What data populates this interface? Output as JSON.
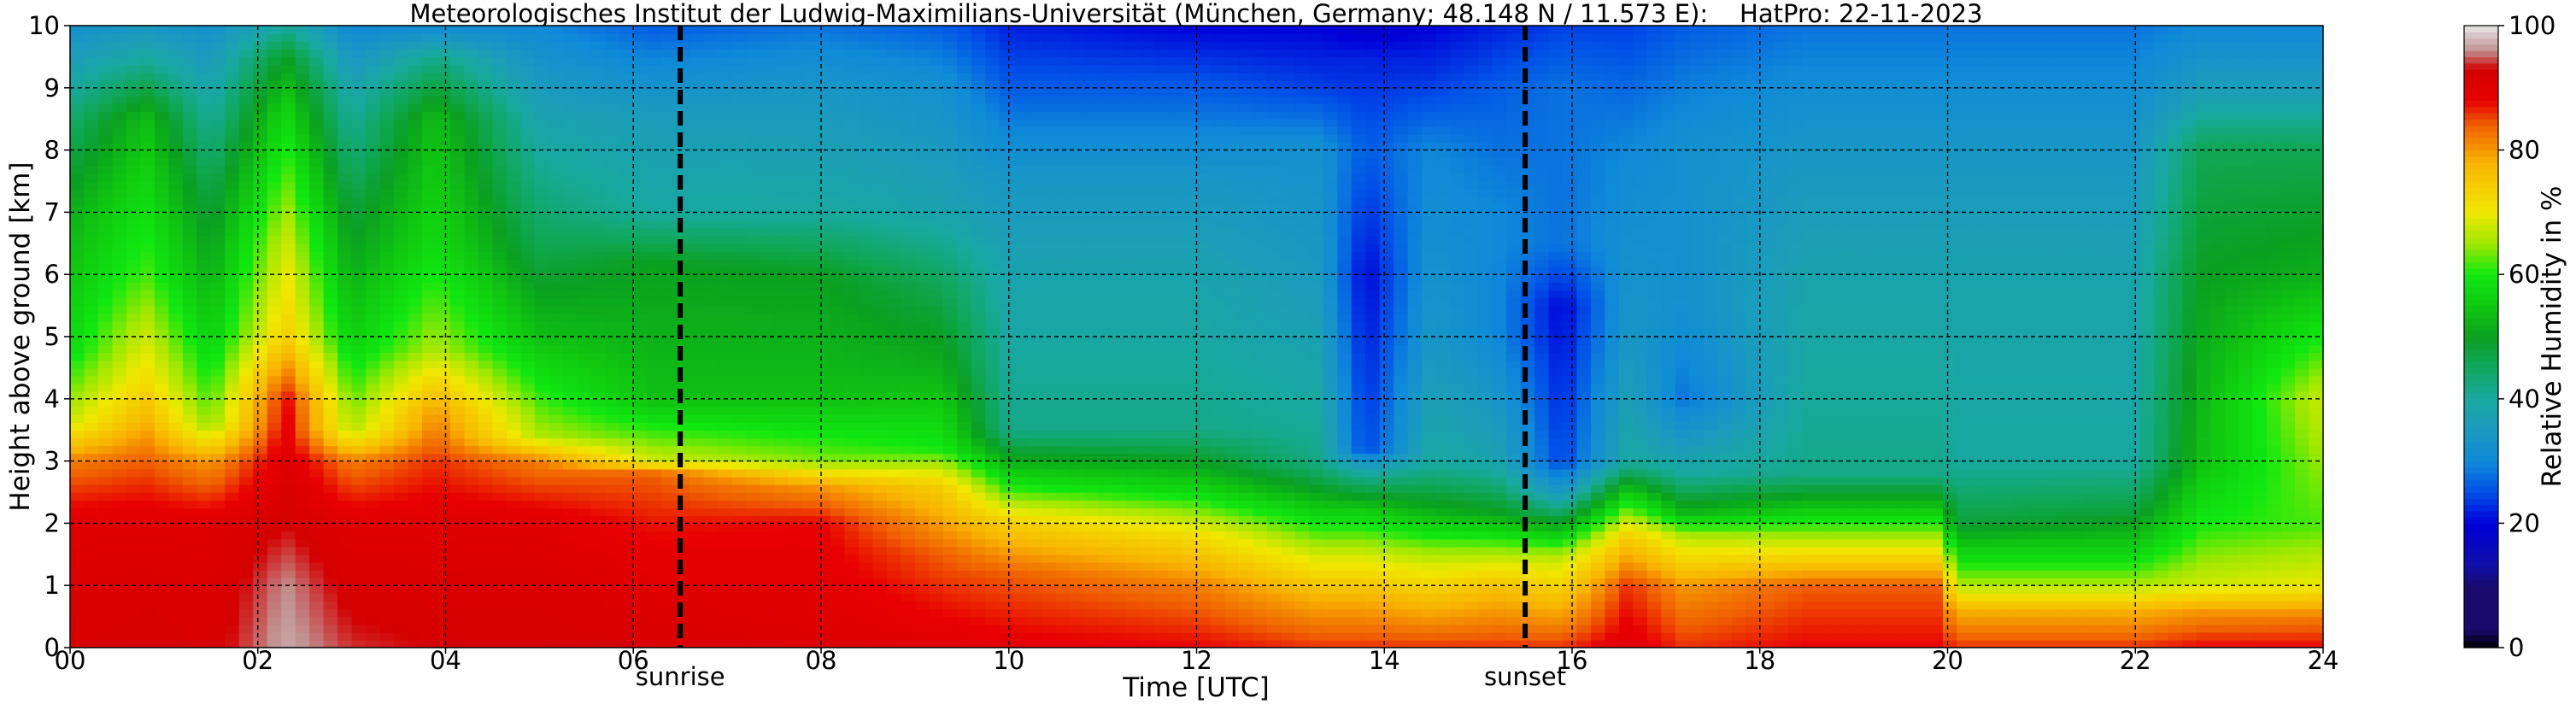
{
  "chart_data": {
    "type": "heatmap",
    "title": "Meteorologisches Institut der Ludwig-Maximilians-Universität (München, Germany; 48.148 N / 11.573 E):    HatPro: 22-11-2023",
    "xlabel": "Time [UTC]",
    "ylabel": "Height above ground [km]",
    "colorbar_label": "Relative Humidity in %",
    "xlim": [
      0,
      24
    ],
    "ylim": [
      0,
      10
    ],
    "clim": [
      0,
      100
    ],
    "grid": true,
    "x_ticks": [
      {
        "value": 0,
        "label": "00"
      },
      {
        "value": 2,
        "label": "02"
      },
      {
        "value": 4,
        "label": "04"
      },
      {
        "value": 6,
        "label": "06"
      },
      {
        "value": 8,
        "label": "08"
      },
      {
        "value": 10,
        "label": "10"
      },
      {
        "value": 12,
        "label": "12"
      },
      {
        "value": 14,
        "label": "14"
      },
      {
        "value": 16,
        "label": "16"
      },
      {
        "value": 18,
        "label": "18"
      },
      {
        "value": 20,
        "label": "20"
      },
      {
        "value": 22,
        "label": "22"
      },
      {
        "value": 24,
        "label": "24"
      }
    ],
    "y_ticks": [
      {
        "value": 0,
        "label": "0"
      },
      {
        "value": 1,
        "label": "1"
      },
      {
        "value": 2,
        "label": "2"
      },
      {
        "value": 3,
        "label": "3"
      },
      {
        "value": 4,
        "label": "4"
      },
      {
        "value": 5,
        "label": "5"
      },
      {
        "value": 6,
        "label": "6"
      },
      {
        "value": 7,
        "label": "7"
      },
      {
        "value": 8,
        "label": "8"
      },
      {
        "value": 9,
        "label": "9"
      },
      {
        "value": 10,
        "label": "10"
      }
    ],
    "colorbar_ticks": [
      {
        "value": 0,
        "label": "0"
      },
      {
        "value": 20,
        "label": "20"
      },
      {
        "value": 40,
        "label": "40"
      },
      {
        "value": 60,
        "label": "60"
      },
      {
        "value": 80,
        "label": "80"
      },
      {
        "value": 100,
        "label": "100"
      }
    ],
    "events": [
      {
        "name": "sunrise",
        "time": 6.5
      },
      {
        "name": "sunset",
        "time": 15.5
      }
    ],
    "colormap": [
      {
        "v": 0,
        "c": "#000000"
      },
      {
        "v": 3,
        "c": "#1a0a6e"
      },
      {
        "v": 10,
        "c": "#1a0a6e"
      },
      {
        "v": 13,
        "c": "#1010a8"
      },
      {
        "v": 20,
        "c": "#0000d8"
      },
      {
        "v": 25,
        "c": "#0050e8"
      },
      {
        "v": 30,
        "c": "#0f8ad8"
      },
      {
        "v": 35,
        "c": "#1a9ac0"
      },
      {
        "v": 40,
        "c": "#19a8a0"
      },
      {
        "v": 45,
        "c": "#10a860"
      },
      {
        "v": 50,
        "c": "#0aa020"
      },
      {
        "v": 55,
        "c": "#10c810"
      },
      {
        "v": 60,
        "c": "#10e810"
      },
      {
        "v": 65,
        "c": "#a0e800"
      },
      {
        "v": 70,
        "c": "#f0e800"
      },
      {
        "v": 78,
        "c": "#f8b400"
      },
      {
        "v": 84,
        "c": "#f06000"
      },
      {
        "v": 88,
        "c": "#e80000"
      },
      {
        "v": 93,
        "c": "#d40000"
      },
      {
        "v": 96,
        "c": "#c09090"
      },
      {
        "v": 100,
        "c": "#e6e6e6"
      }
    ],
    "rh_columns": [
      {
        "t": 0.0,
        "levels": [
          [
            0,
            92
          ],
          [
            2.0,
            90
          ],
          [
            3.0,
            82
          ],
          [
            3.6,
            68
          ],
          [
            4.8,
            58
          ],
          [
            7.0,
            52
          ],
          [
            8.5,
            44
          ],
          [
            9.5,
            36
          ],
          [
            10,
            32
          ]
        ]
      },
      {
        "t": 0.8,
        "levels": [
          [
            0,
            93
          ],
          [
            2.0,
            90
          ],
          [
            3.0,
            84
          ],
          [
            4.3,
            72
          ],
          [
            6.0,
            62
          ],
          [
            8.5,
            54
          ],
          [
            9.5,
            40
          ],
          [
            10,
            34
          ]
        ]
      },
      {
        "t": 1.5,
        "levels": [
          [
            0,
            92
          ],
          [
            2.0,
            90
          ],
          [
            3.0,
            80
          ],
          [
            3.6,
            64
          ],
          [
            5.0,
            56
          ],
          [
            7.5,
            46
          ],
          [
            9.0,
            38
          ],
          [
            10,
            32
          ]
        ]
      },
      {
        "t": 2.3,
        "levels": [
          [
            0,
            97
          ],
          [
            1.0,
            96
          ],
          [
            2.0,
            93
          ],
          [
            4.0,
            88
          ],
          [
            5.0,
            74
          ],
          [
            6.5,
            68
          ],
          [
            8.5,
            58
          ],
          [
            9.5,
            50
          ],
          [
            10,
            40
          ]
        ]
      },
      {
        "t": 3.0,
        "levels": [
          [
            0,
            94
          ],
          [
            2.0,
            90
          ],
          [
            3.0,
            82
          ],
          [
            3.5,
            66
          ],
          [
            5.0,
            56
          ],
          [
            7.0,
            48
          ],
          [
            9.0,
            38
          ],
          [
            10,
            30
          ]
        ]
      },
      {
        "t": 3.9,
        "levels": [
          [
            0,
            93
          ],
          [
            2.0,
            90
          ],
          [
            3.0,
            86
          ],
          [
            3.8,
            80
          ],
          [
            4.8,
            66
          ],
          [
            6.5,
            58
          ],
          [
            8.5,
            54
          ],
          [
            9.5,
            42
          ],
          [
            10,
            30
          ]
        ]
      },
      {
        "t": 5.0,
        "levels": [
          [
            0,
            93
          ],
          [
            2.0,
            90
          ],
          [
            3.0,
            82
          ],
          [
            3.4,
            66
          ],
          [
            5.0,
            54
          ],
          [
            6.5,
            46
          ],
          [
            8.5,
            38
          ],
          [
            10,
            30
          ]
        ]
      },
      {
        "t": 6.2,
        "levels": [
          [
            0,
            92
          ],
          [
            1.5,
            89
          ],
          [
            2.8,
            84
          ],
          [
            3.0,
            68
          ],
          [
            4.0,
            54
          ],
          [
            6.2,
            50
          ],
          [
            7.0,
            40
          ],
          [
            8.5,
            36
          ],
          [
            10,
            26
          ]
        ]
      },
      {
        "t": 8.0,
        "levels": [
          [
            0,
            91
          ],
          [
            2.0,
            88
          ],
          [
            2.6,
            80
          ],
          [
            3.0,
            64
          ],
          [
            4.0,
            54
          ],
          [
            6.0,
            50
          ],
          [
            7.0,
            40
          ],
          [
            9.0,
            34
          ],
          [
            10,
            28
          ]
        ]
      },
      {
        "t": 9.3,
        "levels": [
          [
            0,
            90
          ],
          [
            1.5,
            84
          ],
          [
            2.6,
            74
          ],
          [
            3.2,
            60
          ],
          [
            4.5,
            52
          ],
          [
            5.8,
            46
          ],
          [
            7.0,
            38
          ],
          [
            9.0,
            32
          ],
          [
            10,
            26
          ]
        ]
      },
      {
        "t": 10.0,
        "levels": [
          [
            0,
            89
          ],
          [
            1.2,
            84
          ],
          [
            2.0,
            74
          ],
          [
            2.6,
            60
          ],
          [
            3.5,
            42
          ],
          [
            6.0,
            38
          ],
          [
            7.5,
            34
          ],
          [
            9.0,
            26
          ],
          [
            10,
            22
          ]
        ]
      },
      {
        "t": 12.0,
        "levels": [
          [
            0,
            88
          ],
          [
            1.0,
            82
          ],
          [
            1.8,
            72
          ],
          [
            2.5,
            58
          ],
          [
            3.5,
            42
          ],
          [
            6.0,
            38
          ],
          [
            7.5,
            34
          ],
          [
            9.0,
            26
          ],
          [
            10,
            20
          ]
        ]
      },
      {
        "t": 13.3,
        "levels": [
          [
            0,
            86
          ],
          [
            0.8,
            78
          ],
          [
            1.5,
            68
          ],
          [
            2.2,
            56
          ],
          [
            3.0,
            42
          ],
          [
            5.5,
            36
          ],
          [
            8.0,
            32
          ],
          [
            9.0,
            24
          ],
          [
            10,
            20
          ]
        ]
      },
      {
        "t": 13.8,
        "levels": [
          [
            0,
            86
          ],
          [
            0.8,
            78
          ],
          [
            1.5,
            68
          ],
          [
            2.2,
            56
          ],
          [
            2.8,
            40
          ],
          [
            3.2,
            24
          ],
          [
            6.0,
            20
          ],
          [
            8.0,
            26
          ],
          [
            9.5,
            22
          ],
          [
            10,
            18
          ]
        ]
      },
      {
        "t": 14.5,
        "levels": [
          [
            0,
            86
          ],
          [
            0.8,
            76
          ],
          [
            1.5,
            66
          ],
          [
            2.2,
            52
          ],
          [
            3.0,
            40
          ],
          [
            5.0,
            34
          ],
          [
            8.0,
            30
          ],
          [
            9.0,
            24
          ],
          [
            10,
            20
          ]
        ]
      },
      {
        "t": 15.2,
        "levels": [
          [
            0,
            86
          ],
          [
            1.0,
            76
          ],
          [
            1.6,
            64
          ],
          [
            2.2,
            50
          ],
          [
            3.0,
            38
          ],
          [
            5.0,
            30
          ],
          [
            7.0,
            30
          ],
          [
            9.0,
            26
          ],
          [
            10,
            22
          ]
        ]
      },
      {
        "t": 15.9,
        "levels": [
          [
            0,
            86
          ],
          [
            0.8,
            76
          ],
          [
            1.5,
            66
          ],
          [
            2.0,
            50
          ],
          [
            2.5,
            34
          ],
          [
            3.0,
            24
          ],
          [
            5.5,
            20
          ],
          [
            6.5,
            28
          ],
          [
            9.0,
            28
          ],
          [
            10,
            24
          ]
        ]
      },
      {
        "t": 16.6,
        "levels": [
          [
            0,
            90
          ],
          [
            1.0,
            86
          ],
          [
            1.8,
            74
          ],
          [
            2.5,
            56
          ],
          [
            3.0,
            40
          ],
          [
            5.0,
            34
          ],
          [
            8.0,
            30
          ],
          [
            10,
            24
          ]
        ]
      },
      {
        "t": 17.2,
        "levels": [
          [
            0,
            86
          ],
          [
            1.0,
            80
          ],
          [
            1.8,
            66
          ],
          [
            2.2,
            52
          ],
          [
            2.8,
            40
          ],
          [
            4.0,
            28
          ],
          [
            5.5,
            32
          ],
          [
            8.0,
            32
          ],
          [
            10,
            26
          ]
        ]
      },
      {
        "t": 18.5,
        "levels": [
          [
            0,
            88
          ],
          [
            1.0,
            84
          ],
          [
            1.5,
            72
          ],
          [
            2.2,
            56
          ],
          [
            2.8,
            42
          ],
          [
            6.0,
            38
          ],
          [
            8.0,
            34
          ],
          [
            10,
            28
          ]
        ]
      },
      {
        "t": 19.9,
        "levels": [
          [
            0,
            88
          ],
          [
            1.0,
            84
          ],
          [
            1.5,
            72
          ],
          [
            2.2,
            56
          ],
          [
            2.8,
            42
          ],
          [
            6.0,
            38
          ],
          [
            8.0,
            34
          ],
          [
            10,
            28
          ]
        ]
      },
      {
        "t": 20.1,
        "levels": [
          [
            0,
            86
          ],
          [
            0.6,
            78
          ],
          [
            1.0,
            66
          ],
          [
            1.6,
            56
          ],
          [
            2.0,
            48
          ],
          [
            3.0,
            40
          ],
          [
            6.0,
            38
          ],
          [
            8.0,
            34
          ],
          [
            10,
            28
          ]
        ]
      },
      {
        "t": 22.0,
        "levels": [
          [
            0,
            86
          ],
          [
            0.6,
            78
          ],
          [
            1.0,
            66
          ],
          [
            1.6,
            56
          ],
          [
            2.2,
            48
          ],
          [
            3.0,
            40
          ],
          [
            6.0,
            38
          ],
          [
            8.0,
            34
          ],
          [
            10,
            28
          ]
        ]
      },
      {
        "t": 22.7,
        "levels": [
          [
            0,
            88
          ],
          [
            0.6,
            80
          ],
          [
            1.0,
            68
          ],
          [
            2.0,
            60
          ],
          [
            3.0,
            54
          ],
          [
            6.0,
            50
          ],
          [
            8.0,
            46
          ],
          [
            9.0,
            36
          ],
          [
            10,
            30
          ]
        ]
      },
      {
        "t": 24.0,
        "levels": [
          [
            0,
            88
          ],
          [
            0.5,
            82
          ],
          [
            1.0,
            70
          ],
          [
            2.0,
            62
          ],
          [
            4.0,
            68
          ],
          [
            6.0,
            52
          ],
          [
            8.0,
            46
          ],
          [
            9.0,
            36
          ],
          [
            10,
            30
          ]
        ]
      }
    ]
  }
}
